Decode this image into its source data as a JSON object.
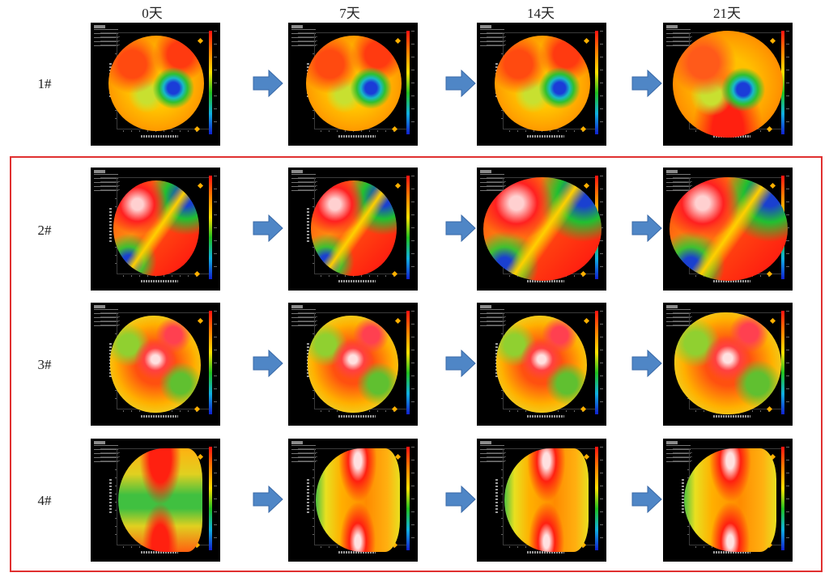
{
  "columns": [
    "0天",
    "7天",
    "14天",
    "21天"
  ],
  "rows": [
    "1#",
    "2#",
    "3#",
    "4#"
  ],
  "colors": {
    "highlight": "#e03030",
    "arrow": "#4f86c6",
    "panel_bg": "#000000"
  },
  "legend_scale": [
    "high-red",
    "orange",
    "yellow",
    "green",
    "cyan",
    "low-blue"
  ]
}
